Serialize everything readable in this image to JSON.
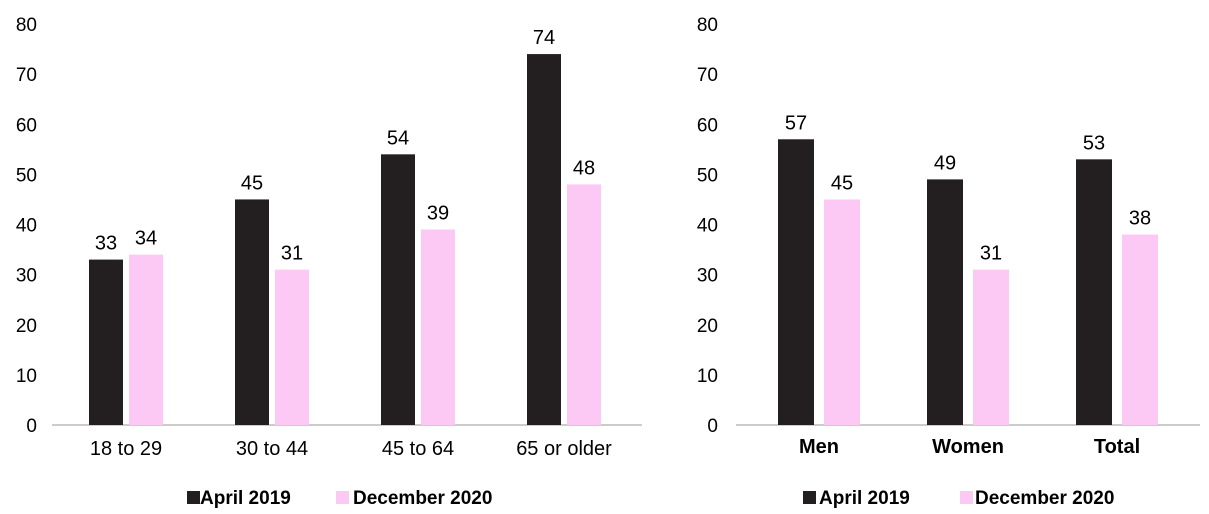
{
  "chart_data": [
    {
      "type": "bar",
      "categories": [
        "18 to 29",
        "30 to 44",
        "45 to 64",
        "65 or older"
      ],
      "series": [
        {
          "name": "April 2019",
          "color": "#231f20",
          "values": [
            33,
            45,
            54,
            74
          ]
        },
        {
          "name": "December 2020",
          "color": "#fcc9f4",
          "values": [
            34,
            31,
            39,
            48
          ]
        }
      ],
      "y_ticks": [
        "0",
        "10",
        "20",
        "30",
        "40",
        "50",
        "60",
        "70",
        "80"
      ],
      "ylim": [
        0,
        80
      ],
      "data_labels": [
        [
          "33",
          "45",
          "54",
          "74"
        ],
        [
          "34",
          "31",
          "39",
          "48"
        ]
      ],
      "grid": false,
      "legend_position": "bottom"
    },
    {
      "type": "bar",
      "categories": [
        "Men",
        "Women",
        "Total"
      ],
      "series": [
        {
          "name": "April 2019",
          "color": "#231f20",
          "values": [
            57,
            49,
            53
          ]
        },
        {
          "name": "December 2020",
          "color": "#fcc9f4",
          "values": [
            45,
            31,
            38
          ]
        }
      ],
      "y_ticks": [
        "0",
        "10",
        "20",
        "30",
        "40",
        "50",
        "60",
        "70",
        "80"
      ],
      "ylim": [
        0,
        80
      ],
      "data_labels": [
        [
          "57",
          "49",
          "53"
        ],
        [
          "45",
          "31",
          "38"
        ]
      ],
      "grid": false,
      "legend_position": "bottom"
    }
  ]
}
